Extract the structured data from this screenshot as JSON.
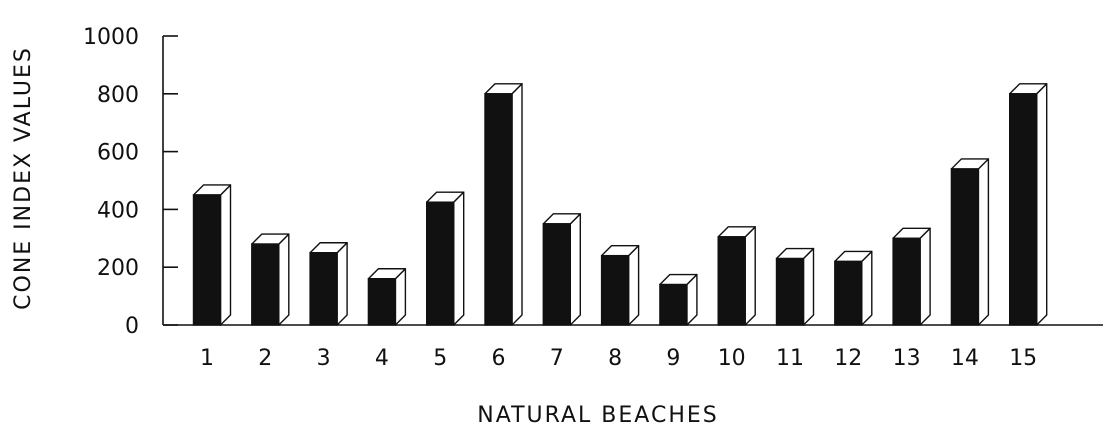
{
  "chart_data": {
    "type": "bar",
    "style": "3d-column",
    "xlabel": "NATURAL BEACHES",
    "ylabel": "CONE INDEX VALUES",
    "categories": [
      "1",
      "2",
      "3",
      "4",
      "5",
      "6",
      "7",
      "8",
      "9",
      "10",
      "11",
      "12",
      "13",
      "14",
      "15"
    ],
    "values": [
      450,
      280,
      250,
      160,
      425,
      800,
      350,
      240,
      140,
      305,
      230,
      220,
      300,
      540,
      800
    ],
    "ylim": [
      0,
      1000
    ],
    "yticks": [
      "0",
      "200",
      "400",
      "600",
      "800",
      "1000"
    ],
    "grid": false,
    "legend": "none",
    "colors": {
      "bar_front": "#111111",
      "bar_side": "#ffffff",
      "outline": "#111111",
      "axis": "#111111"
    }
  }
}
